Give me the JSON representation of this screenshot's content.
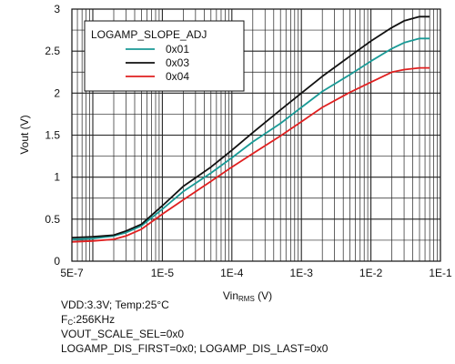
{
  "chart_data": {
    "type": "line",
    "xscale": "log",
    "xlim": [
      5e-07,
      0.1
    ],
    "ylim": [
      0,
      3
    ],
    "xlabel_main": "Vin",
    "xlabel_sub": "RMS",
    "xlabel_unit": " (V)",
    "ylabel": "Vout (V)",
    "x_ticks": [
      {
        "value": 5e-07,
        "label": "5E-7"
      },
      {
        "value": 1e-05,
        "label": "1E-5"
      },
      {
        "value": 0.0001,
        "label": "1E-4"
      },
      {
        "value": 0.001,
        "label": "1E-3"
      },
      {
        "value": 0.01,
        "label": "1E-2"
      },
      {
        "value": 0.1,
        "label": "1E-1"
      }
    ],
    "y_ticks": [
      {
        "value": 0,
        "label": "0"
      },
      {
        "value": 0.5,
        "label": "0.5"
      },
      {
        "value": 1,
        "label": "1"
      },
      {
        "value": 1.5,
        "label": "1.5"
      },
      {
        "value": 2,
        "label": "2"
      },
      {
        "value": 2.5,
        "label": "2.5"
      },
      {
        "value": 3,
        "label": "3"
      }
    ],
    "grid": true,
    "legend_title": "LOGAMP_SLOPE_ADJ",
    "legend_position": "top-left",
    "series": [
      {
        "name": "0x01",
        "color": "#1a9a96",
        "x": [
          5e-07,
          1e-06,
          2e-06,
          3e-06,
          5e-06,
          1e-05,
          2e-05,
          5e-05,
          0.0001,
          0.0002,
          0.0005,
          0.001,
          0.002,
          0.005,
          0.01,
          0.02,
          0.03,
          0.05,
          0.07
        ],
        "y": [
          0.26,
          0.27,
          0.3,
          0.34,
          0.42,
          0.62,
          0.83,
          1.05,
          1.23,
          1.42,
          1.64,
          1.83,
          2.02,
          2.22,
          2.38,
          2.53,
          2.6,
          2.65,
          2.65
        ]
      },
      {
        "name": "0x03",
        "color": "#111111",
        "x": [
          5e-07,
          1e-06,
          2e-06,
          3e-06,
          5e-06,
          1e-05,
          2e-05,
          5e-05,
          0.0001,
          0.0002,
          0.0005,
          0.001,
          0.002,
          0.005,
          0.01,
          0.02,
          0.03,
          0.05,
          0.07
        ],
        "y": [
          0.28,
          0.29,
          0.31,
          0.36,
          0.44,
          0.66,
          0.89,
          1.12,
          1.32,
          1.53,
          1.8,
          2.0,
          2.2,
          2.44,
          2.62,
          2.78,
          2.86,
          2.91,
          2.91
        ]
      },
      {
        "name": "0x04",
        "color": "#e02020",
        "x": [
          5e-07,
          1e-06,
          2e-06,
          3e-06,
          5e-06,
          1e-05,
          2e-05,
          5e-05,
          0.0001,
          0.0002,
          0.0005,
          0.001,
          0.002,
          0.005,
          0.01,
          0.02,
          0.03,
          0.05,
          0.07
        ],
        "y": [
          0.23,
          0.24,
          0.26,
          0.3,
          0.38,
          0.56,
          0.73,
          0.95,
          1.12,
          1.28,
          1.49,
          1.66,
          1.83,
          2.01,
          2.13,
          2.25,
          2.28,
          2.3,
          2.3
        ]
      }
    ]
  },
  "conditions": {
    "line1": "VDD:3.3V; Temp:25°C",
    "line2_main": "F",
    "line2_sub": "C",
    "line2_rest": ":256KHz",
    "line3": "VOUT_SCALE_SEL=0x0",
    "line4": "LOGAMP_DIS_FIRST=0x0; LOGAMP_DIS_LAST=0x0"
  }
}
